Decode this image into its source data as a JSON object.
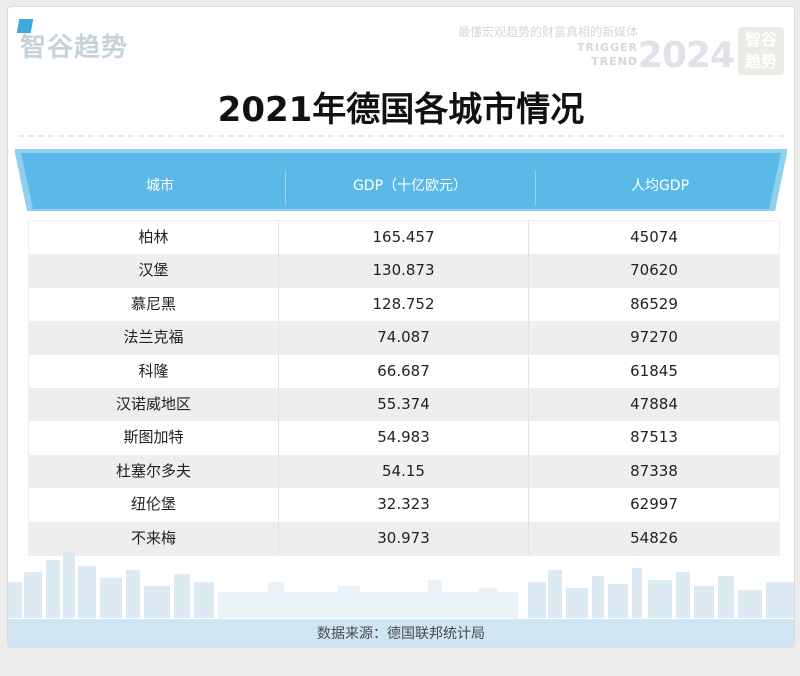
{
  "brand": {
    "logo_text": "智谷趋势",
    "slogan": "最懂宏观趋势的财富真相的新媒体",
    "en_line1": "TRIGGER",
    "en_line2": "TREND",
    "year": "2024",
    "badge_line1": "智谷",
    "badge_line2": "趋势"
  },
  "title": "2021年德国各城市情况",
  "footer": "数据来源：德国联邦统计局",
  "colors": {
    "header_blue": "#5ab9e6",
    "header_light": "#8fd0f0",
    "footer_bg": "#cfe6f2",
    "row_alt": "#eeeeee"
  },
  "chart_data": {
    "type": "table",
    "columns": [
      "城市",
      "GDP（十亿欧元）",
      "人均GDP"
    ],
    "rows": [
      [
        "柏林",
        "165.457",
        "45074"
      ],
      [
        "汉堡",
        "130.873",
        "70620"
      ],
      [
        "慕尼黑",
        "128.752",
        "86529"
      ],
      [
        "法兰克福",
        "74.087",
        "97270"
      ],
      [
        "科隆",
        "66.687",
        "61845"
      ],
      [
        "汉诺威地区",
        "55.374",
        "47884"
      ],
      [
        "斯图加特",
        "54.983",
        "87513"
      ],
      [
        "杜塞尔多夫",
        "54.15",
        "87338"
      ],
      [
        "纽伦堡",
        "32.323",
        "62997"
      ],
      [
        "不来梅",
        "30.973",
        "54826"
      ]
    ]
  }
}
